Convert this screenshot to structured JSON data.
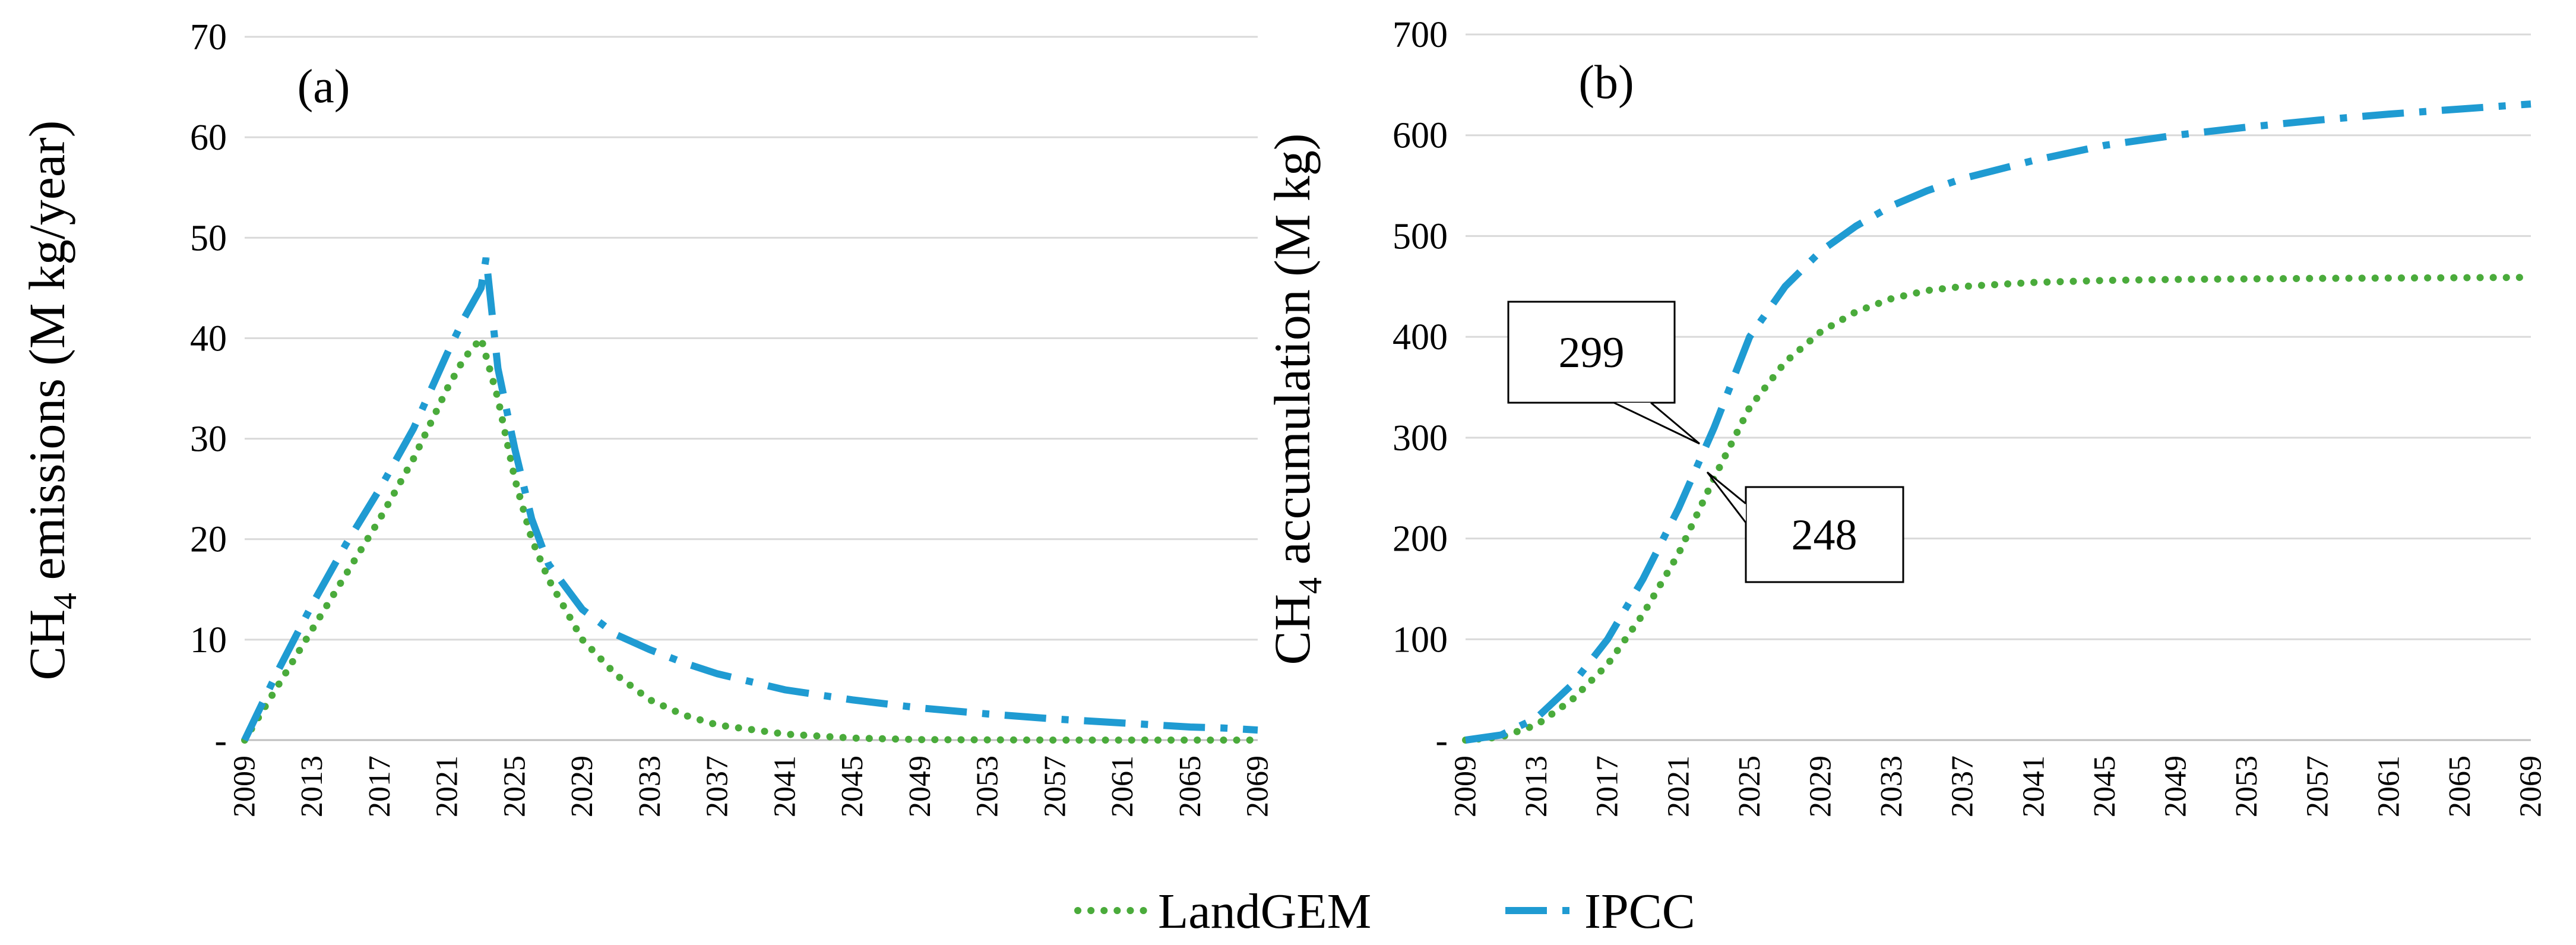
{
  "legend": {
    "landgem_label": "LandGEM",
    "ipcc_label": "IPCC",
    "landgem_color": "#4aab3b",
    "ipcc_color": "#1f9bd2"
  },
  "chart_data": [
    {
      "type": "line",
      "panel_label": "(a)",
      "ylabel_main": "CH",
      "ylabel_sub": "4",
      "ylabel_rest": " emissions (M kg/year)",
      "xlim": [
        2009,
        2069
      ],
      "ylim": [
        0,
        70
      ],
      "ytick_values": [
        0,
        10,
        20,
        30,
        40,
        50,
        60,
        70
      ],
      "ytick_labels": [
        "-",
        "10",
        "20",
        "30",
        "40",
        "50",
        "60",
        "70"
      ],
      "xtick_labels": [
        "2009",
        "2013",
        "2017",
        "2021",
        "2025",
        "2029",
        "2033",
        "2037",
        "2041",
        "2045",
        "2049",
        "2053",
        "2057",
        "2061",
        "2065",
        "2069"
      ],
      "grid": true,
      "series": [
        {
          "name": "LandGEM",
          "x": [
            2009,
            2011,
            2013,
            2015,
            2017,
            2019,
            2021,
            2022,
            2023,
            2024,
            2025,
            2026,
            2027,
            2029,
            2031,
            2033,
            2035,
            2037,
            2041,
            2045,
            2049,
            2057,
            2069
          ],
          "values": [
            0,
            5.5,
            11,
            16.5,
            22,
            28,
            35,
            38,
            40,
            34,
            26,
            20,
            16,
            10,
            6.5,
            4,
            2.5,
            1.5,
            0.6,
            0.2,
            0.05,
            0,
            0
          ]
        },
        {
          "name": "IPCC",
          "x": [
            2009,
            2011,
            2013,
            2015,
            2017,
            2019,
            2021,
            2022,
            2023,
            2023.3,
            2024,
            2025,
            2026,
            2027,
            2029,
            2031,
            2033,
            2035,
            2037,
            2041,
            2045,
            2049,
            2053,
            2057,
            2061,
            2065,
            2067,
            2069
          ],
          "values": [
            0,
            7,
            13.5,
            19.5,
            25,
            31,
            38.5,
            42,
            45,
            48,
            37,
            29,
            22,
            17.5,
            13,
            10.5,
            9,
            7.7,
            6.6,
            5,
            4,
            3.2,
            2.6,
            2.1,
            1.7,
            1.3,
            1.2,
            1.0
          ]
        }
      ]
    },
    {
      "type": "line",
      "panel_label": "(b)",
      "ylabel_main": "CH",
      "ylabel_sub": "4",
      "ylabel_rest": " accumulation (M kg)",
      "xlim": [
        2009,
        2069
      ],
      "ylim": [
        0,
        700
      ],
      "ytick_values": [
        0,
        100,
        200,
        300,
        400,
        500,
        600,
        700
      ],
      "ytick_labels": [
        "-",
        "100",
        "200",
        "300",
        "400",
        "500",
        "600",
        "700"
      ],
      "xtick_labels": [
        "2009",
        "2013",
        "2017",
        "2021",
        "2025",
        "2029",
        "2033",
        "2037",
        "2041",
        "2045",
        "2049",
        "2053",
        "2057",
        "2061",
        "2065",
        "2069"
      ],
      "grid": true,
      "annotations": [
        {
          "text": "299",
          "x": 2022.5,
          "y": 299
        },
        {
          "text": "248",
          "x": 2023.2,
          "y": 255
        }
      ],
      "series": [
        {
          "name": "LandGEM",
          "x": [
            2009,
            2011,
            2013,
            2015,
            2017,
            2019,
            2021,
            2023,
            2025,
            2027,
            2029,
            2031,
            2033,
            2035,
            2037,
            2041,
            2045,
            2049,
            2057,
            2069
          ],
          "values": [
            0,
            3,
            15,
            40,
            75,
            125,
            185,
            260,
            330,
            375,
            405,
            425,
            438,
            446,
            450,
            454,
            456,
            457,
            458,
            459
          ]
        },
        {
          "name": "IPCC",
          "x": [
            2009,
            2011,
            2013,
            2015,
            2017,
            2019,
            2021,
            2023,
            2025,
            2027,
            2029,
            2031,
            2033,
            2035,
            2037,
            2041,
            2045,
            2049,
            2053,
            2057,
            2061,
            2065,
            2069
          ],
          "values": [
            0,
            5,
            22,
            55,
            100,
            160,
            230,
            310,
            400,
            450,
            485,
            510,
            530,
            545,
            557,
            575,
            590,
            600,
            608,
            615,
            621,
            626,
            631
          ]
        }
      ]
    }
  ]
}
